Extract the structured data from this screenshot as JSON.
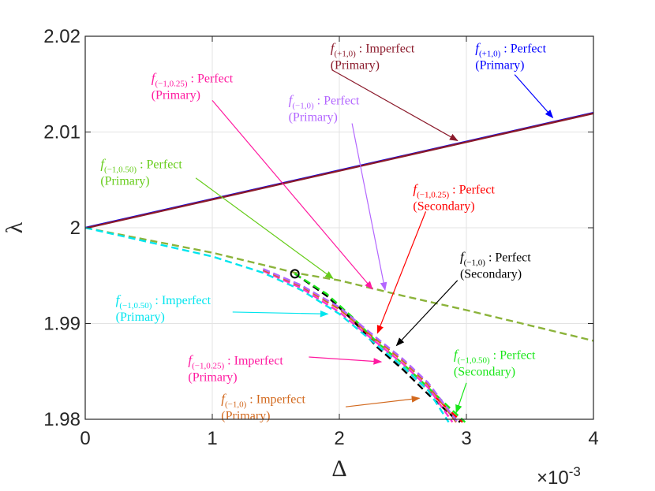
{
  "chart_data": {
    "type": "line",
    "xlabel": "Δ",
    "ylabel": "λ",
    "x_multiplier_label": "×10",
    "x_multiplier_exponent": "-3",
    "xlim": [
      0,
      4
    ],
    "ylim": [
      1.98,
      2.02
    ],
    "xticks": [
      "0",
      "1",
      "2",
      "3",
      "4"
    ],
    "yticks": [
      "1.98",
      "1.99",
      "2",
      "2.01",
      "2.02"
    ],
    "grid": true,
    "series": [
      {
        "color": "#0000ff",
        "style": "solid",
        "x": [
          0,
          4
        ],
        "y": [
          2.0,
          2.012
        ]
      },
      {
        "color": "#8b1a2b",
        "style": "solid",
        "x": [
          0,
          4
        ],
        "y": [
          1.99995,
          2.01195
        ]
      },
      {
        "color": "#8bb33a",
        "style": "dashed",
        "x": [
          0,
          0.5,
          1.0,
          1.5,
          1.65,
          2.0,
          2.5,
          3.0,
          3.5,
          4.0
        ],
        "y": [
          2.0,
          1.9987,
          1.9974,
          1.9958,
          1.9953,
          1.9945,
          1.9929,
          1.9914,
          1.9898,
          1.9882
        ]
      },
      {
        "color": "#ff0000",
        "style": "dashed",
        "x": [
          1.65,
          1.9,
          2.1,
          2.3,
          2.5,
          2.7,
          2.9,
          2.97
        ],
        "y": [
          1.9952,
          1.993,
          1.9905,
          1.9877,
          1.9855,
          1.983,
          1.9805,
          1.9797
        ]
      },
      {
        "color": "#000000",
        "style": "dashed",
        "x": [
          1.65,
          1.9,
          2.1,
          2.3,
          2.5,
          2.7,
          2.9,
          2.95
        ],
        "y": [
          1.9952,
          1.9929,
          1.9904,
          1.9875,
          1.9852,
          1.9826,
          1.9802,
          1.9797
        ]
      },
      {
        "color": "#19e619",
        "style": "dashed",
        "x": [
          1.65,
          1.9,
          2.1,
          2.3,
          2.5,
          2.7,
          2.9,
          2.99
        ],
        "y": [
          1.9952,
          1.9931,
          1.9907,
          1.988,
          1.9858,
          1.9833,
          1.9808,
          1.9797
        ]
      },
      {
        "color": "#00e5ee",
        "style": "dashed",
        "x": [
          0,
          0.5,
          1.0,
          1.4,
          1.7,
          2.0,
          2.2,
          2.5,
          2.7,
          2.86
        ],
        "y": [
          2.0,
          1.9985,
          1.997,
          1.9953,
          1.9935,
          1.991,
          1.9888,
          1.9855,
          1.983,
          1.9797
        ]
      },
      {
        "color": "#ff33cc",
        "style": "dashed",
        "x": [
          1.4,
          1.7,
          2.0,
          2.2,
          2.5,
          2.7,
          2.89
        ],
        "y": [
          1.9955,
          1.9937,
          1.9912,
          1.989,
          1.9858,
          1.9833,
          1.9797
        ]
      },
      {
        "color": "#d2691e",
        "style": "dashed",
        "x": [
          1.4,
          1.7,
          2.0,
          2.2,
          2.5,
          2.7,
          2.92
        ],
        "y": [
          1.9956,
          1.9939,
          1.9915,
          1.9893,
          1.9861,
          1.9836,
          1.9797
        ]
      },
      {
        "color": "#b366ff",
        "style": "dashed",
        "x": [
          1.4,
          1.7,
          2.0,
          2.2,
          2.5,
          2.7,
          2.93
        ],
        "y": [
          1.9957,
          1.994,
          1.9917,
          1.9895,
          1.9863,
          1.9838,
          1.9797
        ]
      }
    ],
    "marker": {
      "x": 1.65,
      "y": 1.9952,
      "shape": "circle",
      "color": "#000000"
    },
    "annotations": [
      {
        "fsub": "(+1,0)",
        "desc": "Imperfect",
        "line2": "(Primary)",
        "color": "#8b1a2b",
        "tx": 1.93,
        "ty": 2.0183,
        "ax": 1.94,
        "ay": 2.0165,
        "px": 2.93,
        "py": 2.0091
      },
      {
        "fsub": "(+1,0)",
        "desc": "Perfect",
        "line2": "(Primary)",
        "color": "#0000ff",
        "tx": 3.07,
        "ty": 2.0183,
        "ax": 3.38,
        "ay": 2.016,
        "px": 3.68,
        "py": 2.0115
      },
      {
        "fsub": "(−1,0.25)",
        "desc": "Perfect",
        "line2": "(Primary)",
        "color": "#ff1aa0",
        "tx": 0.52,
        "ty": 2.0152,
        "ax": 1.0,
        "ay": 2.0133,
        "px": 2.26,
        "py": 1.9936
      },
      {
        "fsub": "(−1,0)",
        "desc": "Perfect",
        "line2": "(Primary)",
        "color": "#b366ff",
        "tx": 1.6,
        "ty": 2.0129,
        "ax": 2.1,
        "ay": 2.0109,
        "px": 2.36,
        "py": 1.9935
      },
      {
        "fsub": "(−1,0.50)",
        "desc": "Perfect",
        "line2": "(Primary)",
        "color": "#66cc1a",
        "tx": 0.12,
        "ty": 2.0062,
        "ax": 0.87,
        "ay": 2.0052,
        "px": 1.95,
        "py": 1.9947
      },
      {
        "fsub": "(−1,0.25)",
        "desc": "Perfect",
        "line2": "(Secondary)",
        "color": "#ff0000",
        "tx": 2.58,
        "ty": 2.0036,
        "ax": 2.68,
        "ay": 2.0017,
        "px": 2.3,
        "py": 1.989
      },
      {
        "fsub": "(−1,0)",
        "desc": "Perfect",
        "line2": "(Secondary)",
        "color": "#000000",
        "tx": 2.95,
        "ty": 1.9965,
        "ax": 2.93,
        "ay": 1.9945,
        "px": 2.45,
        "py": 1.9877
      },
      {
        "fsub": "(−1,0.50)",
        "desc": "Imperfect",
        "line2": "(Primary)",
        "color": "#00e5ee",
        "tx": 0.24,
        "ty": 1.992,
        "ax": 1.16,
        "ay": 1.9912,
        "px": 1.91,
        "py": 1.991
      },
      {
        "fsub": "(−1,0.25)",
        "desc": "Imperfect",
        "line2": "(Primary)",
        "color": "#ff1aa0",
        "tx": 0.81,
        "ty": 1.9857,
        "ax": 1.76,
        "ay": 1.9865,
        "px": 2.33,
        "py": 1.986
      },
      {
        "fsub": "(−1,0)",
        "desc": "Imperfect",
        "line2": "(Primary)",
        "color": "#d2691e",
        "tx": 1.07,
        "ty": 1.9817,
        "ax": 2.05,
        "ay": 1.9813,
        "px": 2.63,
        "py": 1.9822
      },
      {
        "fsub": "(−1,0.50)",
        "desc": "Perfect",
        "line2": "(Secondary)",
        "color": "#19e619",
        "tx": 2.9,
        "ty": 1.9863,
        "ax": 3.0,
        "ay": 1.9838,
        "px": 2.92,
        "py": 1.9807
      }
    ]
  }
}
